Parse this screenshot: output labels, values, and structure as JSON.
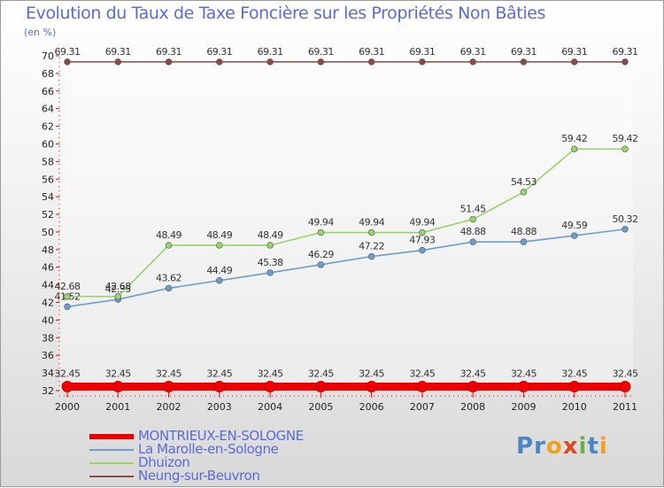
{
  "title": "Evolution du Taux de Taxe Foncière sur les Propriétés Non Bâties",
  "unit_label": "(en %)",
  "logo": {
    "text": "Proxiti",
    "letters": [
      "P",
      "r",
      "o",
      "x",
      "i",
      "t",
      "i"
    ],
    "colors": [
      "#4a86c5",
      "#4a86c5",
      "#f0a020",
      "#d94c1a",
      "#6ab04c",
      "#4a86c5",
      "#f0a020"
    ]
  },
  "chart_data": {
    "type": "line",
    "title": "Evolution du Taux de Taxe Foncière sur les Propriétés Non Bâties",
    "ylabel": "(en %)",
    "xlabel": "",
    "ylim": [
      32,
      70
    ],
    "yticks": [
      32,
      34,
      36,
      38,
      40,
      42,
      44,
      46,
      48,
      50,
      52,
      54,
      56,
      58,
      60,
      62,
      64,
      66,
      68,
      70
    ],
    "categories": [
      "2000",
      "2001",
      "2002",
      "2003",
      "2004",
      "2005",
      "2006",
      "2007",
      "2008",
      "2009",
      "2010",
      "2011"
    ],
    "series": [
      {
        "name": "MONTRIEUX-EN-SOLOGNE",
        "color": "#ee0000",
        "values": [
          32.45,
          32.45,
          32.45,
          32.45,
          32.45,
          32.45,
          32.45,
          32.45,
          32.45,
          32.45,
          32.45,
          32.45
        ],
        "labels": [
          "32.45",
          "32.45",
          "32.45",
          "32.45",
          "32.45",
          "32.45",
          "32.45",
          "32.45",
          "32.45",
          "32.45",
          "32.45",
          "32.45"
        ]
      },
      {
        "name": "La Marolle-en-Sologne",
        "color": "#6a9fcc",
        "values": [
          41.52,
          42.35,
          43.62,
          44.49,
          45.38,
          46.29,
          47.22,
          47.93,
          48.88,
          48.88,
          49.59,
          50.32
        ],
        "labels": [
          "41.52",
          "42.35",
          "43.62",
          "44.49",
          "45.38",
          "46.29",
          "47.22",
          "47.93",
          "48.88",
          "48.88",
          "49.59",
          "50.32"
        ]
      },
      {
        "name": "Dhuizon",
        "color": "#99d46a",
        "values": [
          42.68,
          42.68,
          48.49,
          48.49,
          48.49,
          49.94,
          49.94,
          49.94,
          51.45,
          54.53,
          59.42,
          59.42
        ],
        "labels": [
          "42.68",
          "42.68",
          "48.49",
          "48.49",
          "48.49",
          "49.94",
          "49.94",
          "49.94",
          "51.45",
          "54.53",
          "59.42",
          "59.42"
        ]
      },
      {
        "name": "Neung-sur-Beuvron",
        "color": "#8a4a4a",
        "values": [
          69.31,
          69.31,
          69.31,
          69.31,
          69.31,
          69.31,
          69.31,
          69.31,
          69.31,
          69.31,
          69.31,
          69.31
        ],
        "labels": [
          "69.31",
          "69.31",
          "69.31",
          "69.31",
          "69.31",
          "69.31",
          "69.31",
          "69.31",
          "69.31",
          "69.31",
          "69.31",
          "69.31"
        ]
      }
    ],
    "legend": "bottom-left"
  }
}
